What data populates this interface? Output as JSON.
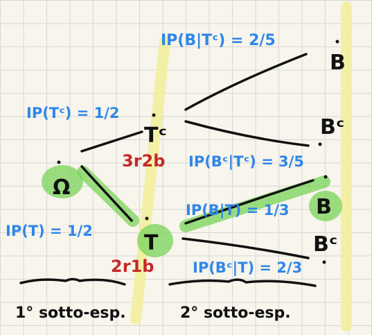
{
  "nodes": {
    "root": "Ω",
    "t": "T",
    "tc": "Tᶜ",
    "b_upper": "B",
    "bc_upper": "Bᶜ",
    "b_lower": "B",
    "bc_lower": "Bᶜ"
  },
  "urns": {
    "tc_contents": "3r2b",
    "t_contents": "2r1b"
  },
  "probabilities": {
    "p_tc": "IP(Tᶜ) = 1/2",
    "p_t": "IP(T) = 1/2",
    "p_b_given_tc": "IP(B|Tᶜ) = 2/5",
    "p_bc_given_tc": "IP(Bᶜ|Tᶜ) = 3/5",
    "p_b_given_t": "IP(B|T) = 1/3",
    "p_bc_given_t": "IP(Bᶜ|T) = 2/3"
  },
  "stages": {
    "first": "1° sotto-esp.",
    "second": "2° sotto-esp."
  },
  "colors": {
    "probability_text": "#2f86e8",
    "urn_text": "#c62828",
    "highlight_yellow": "#f2ef9a",
    "highlight_green": "#7ad35a"
  }
}
